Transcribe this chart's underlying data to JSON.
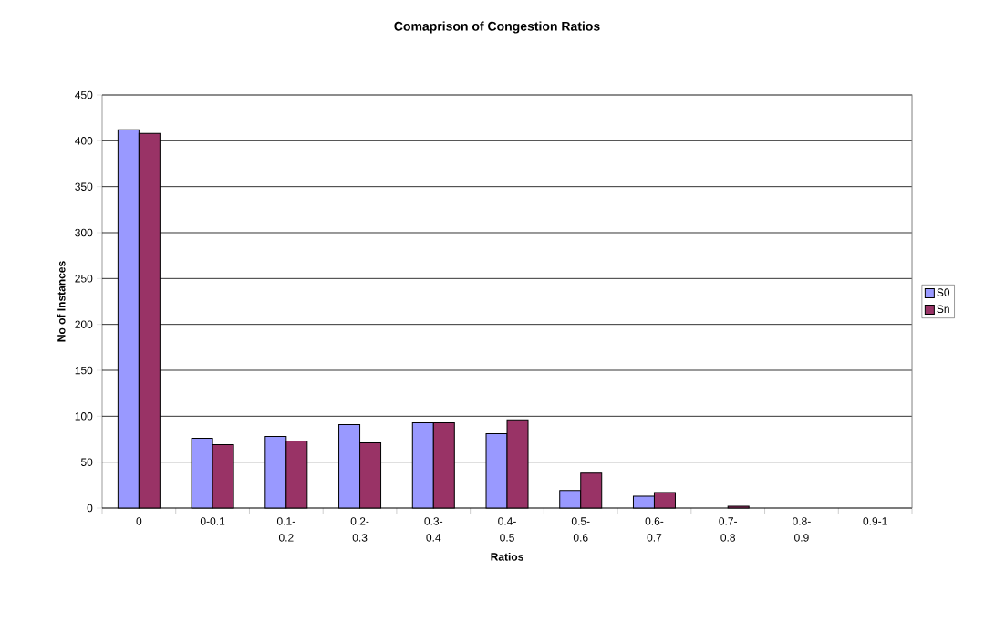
{
  "chart_data": {
    "type": "bar",
    "title": "Comaprison of Congestion Ratios",
    "xlabel": "Ratios",
    "ylabel": "No of Instances",
    "categories": [
      "0",
      "0-0.1",
      "0.1-0.2",
      "0.2-0.3",
      "0.3-0.4",
      "0.4-0.5",
      "0.5-0.6",
      "0.6-0.7",
      "0.7-0.8",
      "0.8-0.9",
      "0.9-1"
    ],
    "series": [
      {
        "name": "S0",
        "color": "#9999ff",
        "values": [
          412,
          76,
          78,
          91,
          93,
          81,
          19,
          13,
          0,
          0,
          0
        ]
      },
      {
        "name": "Sn",
        "color": "#993366",
        "values": [
          408,
          69,
          73,
          71,
          93,
          96,
          38,
          17,
          2,
          0,
          0
        ]
      }
    ],
    "ylim": [
      0,
      450
    ],
    "yticks": [
      0,
      50,
      100,
      150,
      200,
      250,
      300,
      350,
      400,
      450
    ],
    "grid": "y",
    "legend": "right"
  }
}
